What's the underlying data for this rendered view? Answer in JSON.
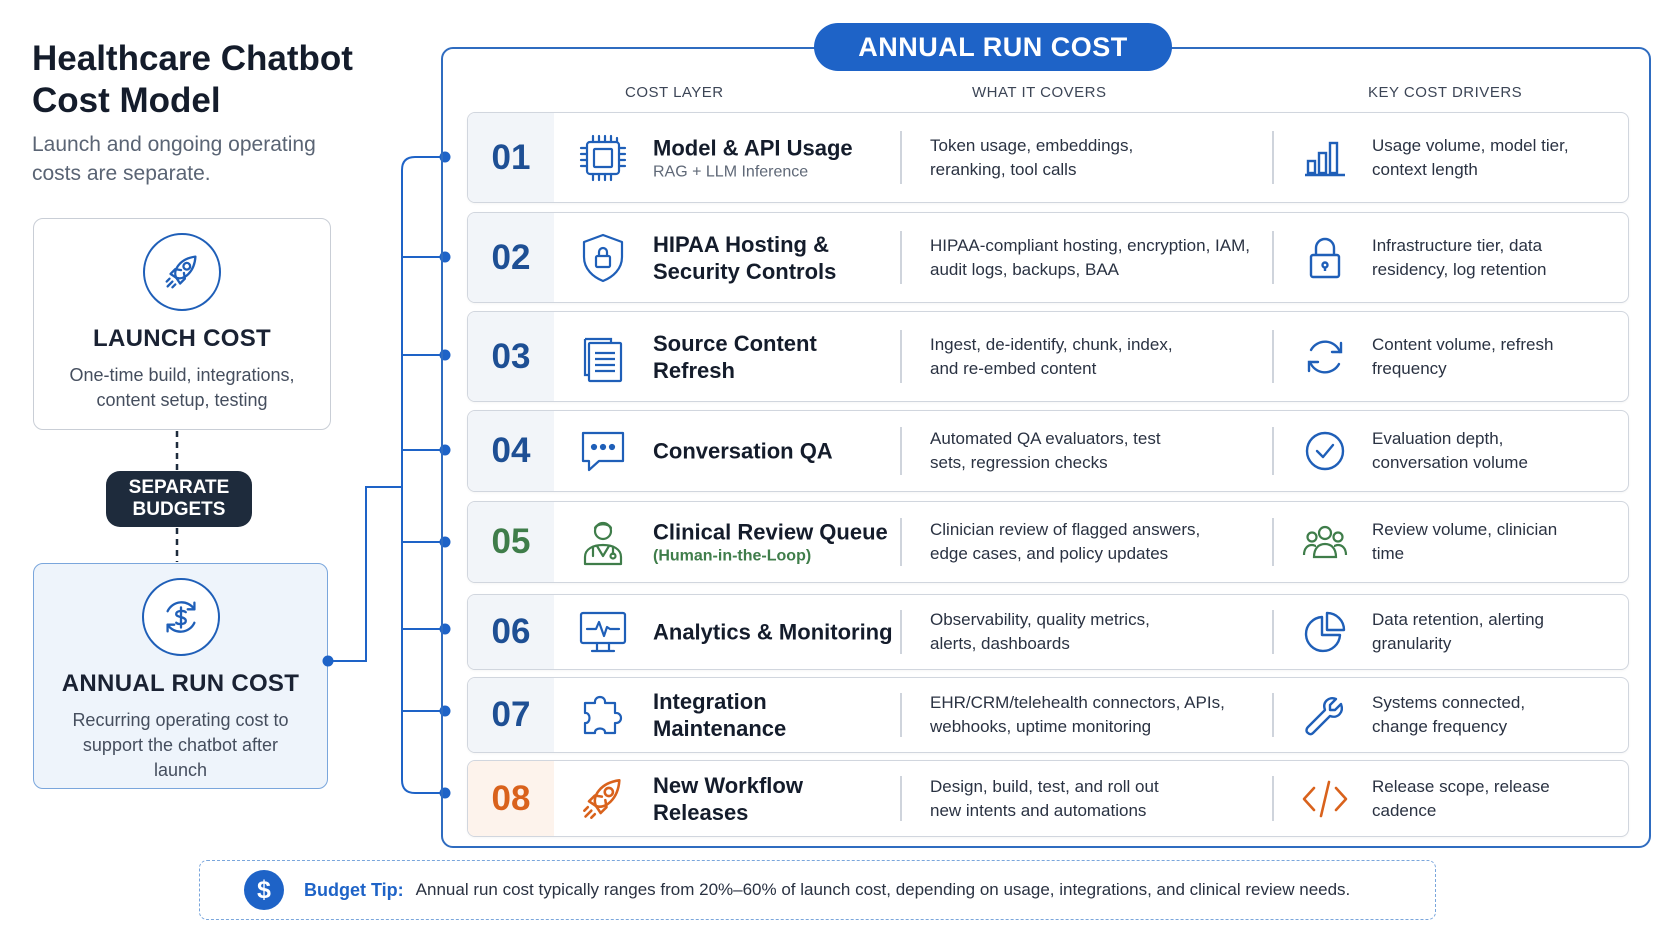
{
  "header": {
    "title": "Healthcare Chatbot Cost Model",
    "subtitle": "Launch and ongoing operating costs are separate."
  },
  "launch": {
    "title": "LAUNCH COST",
    "description": "One-time build, integrations, content setup, testing",
    "icon": "rocket-icon"
  },
  "separator": {
    "label": "SEPARATE BUDGETS"
  },
  "annual": {
    "title": "ANNUAL RUN COST",
    "description": "Recurring operating cost to support the chatbot after launch",
    "icon": "dollar-cycle-icon"
  },
  "panel": {
    "title": "ANNUAL RUN COST",
    "columns": {
      "layer": "COST LAYER",
      "covers": "WHAT IT COVERS",
      "drivers": "KEY COST DRIVERS"
    }
  },
  "rows": [
    {
      "num": "01",
      "title": "Model & API Usage",
      "subtitle": "RAG + LLM Inference",
      "covers": "Token usage, embeddings, reranking, tool calls",
      "drivers": "Usage volume, model tier, context length",
      "icon": "chip-icon",
      "driver_icon": "bar-chart-icon"
    },
    {
      "num": "02",
      "title": "HIPAA Hosting & Security Controls",
      "subtitle": "",
      "covers": "HIPAA-compliant hosting, encryption, IAM, audit logs, backups, BAA",
      "drivers": "Infrastructure tier, data residency, log retention",
      "icon": "shield-lock-icon",
      "driver_icon": "lock-icon"
    },
    {
      "num": "03",
      "title": "Source Content Refresh",
      "subtitle": "",
      "covers": "Ingest, de-identify, chunk, index, and re-embed content",
      "drivers": "Content volume, refresh frequency",
      "icon": "documents-icon",
      "driver_icon": "refresh-icon"
    },
    {
      "num": "04",
      "title": "Conversation QA",
      "subtitle": "",
      "covers": "Automated QA evaluators, test sets, regression checks",
      "drivers": "Evaluation depth, conversation volume",
      "icon": "chat-bubble-icon",
      "driver_icon": "check-circle-icon"
    },
    {
      "num": "05",
      "title": "Clinical Review Queue",
      "subtitle": "(Human-in-the-Loop)",
      "covers": "Clinician review of flagged answers, edge cases, and policy updates",
      "drivers": "Review volume, clinician time",
      "icon": "clinician-icon",
      "driver_icon": "team-icon"
    },
    {
      "num": "06",
      "title": "Analytics & Monitoring",
      "subtitle": "",
      "covers": "Observability, quality metrics, alerts, dashboards",
      "drivers": "Data retention, alerting granularity",
      "icon": "monitor-pulse-icon",
      "driver_icon": "pie-chart-icon"
    },
    {
      "num": "07",
      "title": "Integration Maintenance",
      "subtitle": "",
      "covers": "EHR/CRM/telehealth connectors, APIs, webhooks, uptime monitoring",
      "drivers": "Systems connected, change frequency",
      "icon": "puzzle-icon",
      "driver_icon": "wrench-icon"
    },
    {
      "num": "08",
      "title": "New Workflow Releases",
      "subtitle": "",
      "covers": "Design, build, test, and roll out new intents and automations",
      "drivers": "Release scope, release cadence",
      "icon": "rocket-icon",
      "driver_icon": "code-icon"
    }
  ],
  "tip": {
    "symbol": "$",
    "label": "Budget Tip:",
    "text": "Annual run cost typically ranges from 20%–60% of launch cost, depending on usage, integrations, and clinical review needs."
  }
}
